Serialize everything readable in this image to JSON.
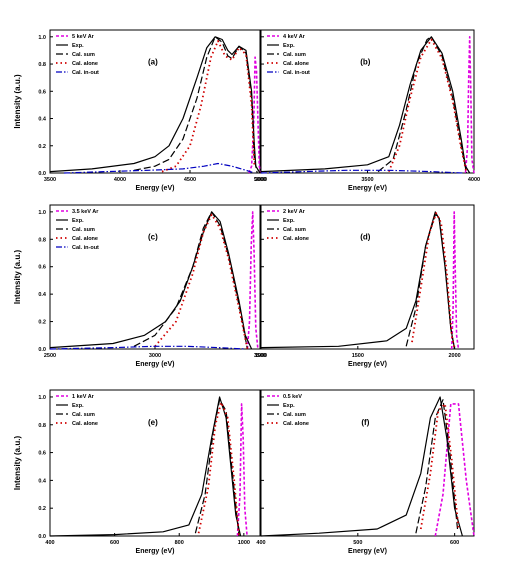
{
  "figure": {
    "panels": [
      {
        "row": 0,
        "col": 0,
        "label": "(a)",
        "xlim": [
          3500,
          5000
        ],
        "xticks": [
          "3500",
          "4000",
          "4500",
          "5000"
        ],
        "xlabel": "Energy (eV)",
        "ylabel": "Intensity (a.u.)",
        "legend": [
          "5 keV Ar",
          "Exp.",
          "Cal. sum",
          "Cal. alone",
          "Cal. in-out"
        ]
      },
      {
        "row": 0,
        "col": 1,
        "label": "(b)",
        "xlim": [
          3000,
          4000
        ],
        "xticks": [
          "3000",
          "3500",
          "4000"
        ],
        "xlabel": "Energy (eV)",
        "ylabel": "",
        "legend": [
          "4 keV Ar",
          "Exp.",
          "Cal. sum",
          "Cal. alone",
          "Cal. in-out"
        ]
      },
      {
        "row": 1,
        "col": 0,
        "label": "(c)",
        "xlim": [
          2500,
          3500
        ],
        "xticks": [
          "2500",
          "3000",
          "3500"
        ],
        "xlabel": "Energy (eV)",
        "ylabel": "Intensity (a.u.)",
        "legend": [
          "3.5 keV Ar",
          "Exp.",
          "Cal. sum",
          "Cal. alone",
          "Cal. in-out"
        ]
      },
      {
        "row": 1,
        "col": 1,
        "label": "(d)",
        "xlim": [
          1000,
          2100
        ],
        "xticks": [
          "1000",
          "1500",
          "2000"
        ],
        "xlabel": "Energy (eV)",
        "ylabel": "",
        "legend": [
          "2 keV Ar",
          "Exp.",
          "Cal. sum",
          "Cal. alone"
        ]
      },
      {
        "row": 2,
        "col": 0,
        "label": "(e)",
        "xlim": [
          400,
          1050
        ],
        "xticks": [
          "400",
          "600",
          "800",
          "1000"
        ],
        "xlabel": "Energy (eV)",
        "ylabel": "Intensity (a.u.)",
        "legend": [
          "1 keV Ar",
          "Exp.",
          "Cal. sum",
          "Cal. alone"
        ]
      },
      {
        "row": 2,
        "col": 1,
        "label": "(f)",
        "xlim": [
          400,
          620
        ],
        "xticks": [
          "400",
          "500",
          "600"
        ],
        "xlabel": "Energy (eV)",
        "ylabel": "",
        "legend": [
          "0.5 keV",
          "Exp.",
          "Cal. sum",
          "Cal. alone"
        ]
      }
    ],
    "yticks": [
      "0.0",
      "0.2",
      "0.4",
      "0.6",
      "0.8",
      "1.0"
    ]
  },
  "colors": {
    "ar": "#e000e0",
    "exp": "#000000",
    "sum": "#000000",
    "alone": "#d00000",
    "inout": "#0000c0"
  },
  "chart_data": [
    {
      "type": "line",
      "panel": "(a)",
      "xlim": [
        3500,
        5000
      ],
      "ylim": [
        0,
        1.05
      ],
      "series": [
        {
          "name": "5 keV Ar",
          "x": [
            4920,
            4940,
            4955,
            4965,
            4975,
            4985,
            4995,
            5005
          ],
          "y": [
            0,
            0.05,
            0.35,
            0.85,
            0.75,
            0.4,
            0.05,
            0
          ]
        },
        {
          "name": "Exp.",
          "x": [
            3500,
            3800,
            4100,
            4250,
            4350,
            4450,
            4550,
            4620,
            4680,
            4730,
            4770,
            4800,
            4850,
            4900,
            4940,
            4960,
            4970,
            5000
          ],
          "y": [
            0.01,
            0.03,
            0.07,
            0.12,
            0.2,
            0.4,
            0.7,
            0.92,
            1.0,
            0.98,
            0.9,
            0.87,
            0.93,
            0.9,
            0.6,
            0.2,
            0.05,
            0
          ]
        },
        {
          "name": "Cal. sum",
          "x": [
            4100,
            4250,
            4350,
            4450,
            4550,
            4620,
            4680,
            4730,
            4770,
            4800,
            4850,
            4900,
            4940,
            4960,
            4980
          ],
          "y": [
            0.02,
            0.05,
            0.1,
            0.25,
            0.55,
            0.85,
            1.0,
            0.96,
            0.86,
            0.84,
            0.93,
            0.88,
            0.55,
            0.1,
            0
          ]
        },
        {
          "name": "Cal. alone",
          "x": [
            4300,
            4400,
            4500,
            4580,
            4650,
            4700,
            4750,
            4800,
            4850,
            4900,
            4940,
            4960
          ],
          "y": [
            0.01,
            0.05,
            0.2,
            0.5,
            0.85,
            0.97,
            0.86,
            0.83,
            0.92,
            0.87,
            0.5,
            0.05
          ]
        },
        {
          "name": "Cal. in-out",
          "x": [
            3600,
            3900,
            4200,
            4450,
            4600,
            4700,
            4800,
            4900,
            4960
          ],
          "y": [
            0,
            0.01,
            0.02,
            0.03,
            0.05,
            0.07,
            0.05,
            0.02,
            0
          ]
        }
      ]
    },
    {
      "type": "line",
      "panel": "(b)",
      "xlim": [
        3000,
        4000
      ],
      "ylim": [
        0,
        1.05
      ],
      "series": [
        {
          "name": "4 keV Ar",
          "x": [
            3960,
            3970,
            3975,
            3980,
            3985,
            3990,
            4000
          ],
          "y": [
            0,
            0.2,
            0.7,
            1.0,
            0.6,
            0.1,
            0
          ]
        },
        {
          "name": "Exp.",
          "x": [
            3000,
            3300,
            3500,
            3600,
            3650,
            3700,
            3750,
            3800,
            3850,
            3900,
            3940,
            3960,
            3980
          ],
          "y": [
            0.01,
            0.03,
            0.06,
            0.12,
            0.35,
            0.65,
            0.9,
            1.0,
            0.88,
            0.6,
            0.25,
            0.05,
            0
          ]
        },
        {
          "name": "Cal. sum",
          "x": [
            3550,
            3620,
            3680,
            3730,
            3780,
            3800,
            3850,
            3900,
            3940,
            3965
          ],
          "y": [
            0.01,
            0.1,
            0.45,
            0.8,
            0.98,
            1.0,
            0.86,
            0.55,
            0.2,
            0
          ]
        },
        {
          "name": "Cal. alone",
          "x": [
            3600,
            3650,
            3700,
            3750,
            3800,
            3850,
            3900,
            3940,
            3965
          ],
          "y": [
            0.01,
            0.2,
            0.55,
            0.85,
            0.98,
            0.84,
            0.53,
            0.18,
            0
          ]
        },
        {
          "name": "Cal. in-out",
          "x": [
            3000,
            3200,
            3400,
            3600,
            3800,
            3950
          ],
          "y": [
            0,
            0.01,
            0.02,
            0.02,
            0.01,
            0
          ]
        }
      ]
    },
    {
      "type": "line",
      "panel": "(c)",
      "xlim": [
        2500,
        3500
      ],
      "ylim": [
        0,
        1.05
      ],
      "series": [
        {
          "name": "3.5 keV Ar",
          "x": [
            3440,
            3450,
            3458,
            3465,
            3472,
            3480,
            3490
          ],
          "y": [
            0,
            0.2,
            0.75,
            1.0,
            0.7,
            0.15,
            0
          ]
        },
        {
          "name": "Exp.",
          "x": [
            2500,
            2800,
            2950,
            3050,
            3120,
            3180,
            3230,
            3270,
            3310,
            3350,
            3400,
            3430,
            3460
          ],
          "y": [
            0.01,
            0.04,
            0.1,
            0.2,
            0.35,
            0.6,
            0.85,
            1.0,
            0.93,
            0.7,
            0.35,
            0.1,
            0
          ]
        },
        {
          "name": "Cal. sum",
          "x": [
            2900,
            3000,
            3100,
            3180,
            3230,
            3270,
            3310,
            3350,
            3400,
            3440
          ],
          "y": [
            0.02,
            0.1,
            0.3,
            0.6,
            0.88,
            1.0,
            0.9,
            0.68,
            0.32,
            0
          ]
        },
        {
          "name": "Cal. alone",
          "x": [
            3000,
            3100,
            3180,
            3230,
            3270,
            3310,
            3350,
            3400,
            3440
          ],
          "y": [
            0.02,
            0.2,
            0.55,
            0.85,
            0.98,
            0.88,
            0.66,
            0.3,
            0
          ]
        },
        {
          "name": "Cal. in-out",
          "x": [
            2500,
            2800,
            3000,
            3150,
            3300,
            3430
          ],
          "y": [
            0,
            0.01,
            0.02,
            0.02,
            0.01,
            0
          ]
        }
      ]
    },
    {
      "type": "line",
      "panel": "(d)",
      "xlim": [
        1000,
        2100
      ],
      "ylim": [
        0,
        1.05
      ],
      "series": [
        {
          "name": "2 keV Ar",
          "x": [
            1985,
            1992,
            1998,
            2003,
            2010,
            2020
          ],
          "y": [
            0,
            0.3,
            1.0,
            0.6,
            0.1,
            0
          ]
        },
        {
          "name": "Exp.",
          "x": [
            1000,
            1400,
            1650,
            1750,
            1800,
            1850,
            1900,
            1920,
            1950,
            1980,
            2000
          ],
          "y": [
            0.01,
            0.02,
            0.06,
            0.15,
            0.35,
            0.75,
            1.0,
            0.95,
            0.6,
            0.15,
            0
          ]
        },
        {
          "name": "Cal. sum",
          "x": [
            1750,
            1800,
            1850,
            1900,
            1920,
            1950,
            1980,
            2000
          ],
          "y": [
            0.02,
            0.3,
            0.75,
            0.98,
            0.96,
            0.62,
            0.15,
            0
          ]
        },
        {
          "name": "Cal. alone",
          "x": [
            1780,
            1820,
            1870,
            1905,
            1930,
            1960,
            1985,
            2000
          ],
          "y": [
            0.05,
            0.4,
            0.85,
            0.99,
            0.92,
            0.55,
            0.1,
            0
          ]
        }
      ]
    },
    {
      "type": "line",
      "panel": "(e)",
      "xlim": [
        400,
        1050
      ],
      "ylim": [
        0,
        1.05
      ],
      "series": [
        {
          "name": "1 keV Ar",
          "x": [
            980,
            988,
            993,
            998,
            1003,
            1010
          ],
          "y": [
            0,
            0.3,
            0.95,
            0.7,
            0.2,
            0
          ]
        },
        {
          "name": "Exp.",
          "x": [
            400,
            600,
            750,
            830,
            870,
            900,
            925,
            945,
            960,
            975,
            990
          ],
          "y": [
            0,
            0.01,
            0.03,
            0.08,
            0.3,
            0.7,
            1.0,
            0.85,
            0.5,
            0.15,
            0
          ]
        },
        {
          "name": "Cal. sum",
          "x": [
            850,
            880,
            905,
            925,
            945,
            965,
            985
          ],
          "y": [
            0.02,
            0.3,
            0.75,
            0.98,
            0.9,
            0.45,
            0
          ]
        },
        {
          "name": "Cal. alone",
          "x": [
            860,
            890,
            912,
            930,
            950,
            970,
            985
          ],
          "y": [
            0.02,
            0.35,
            0.8,
            0.96,
            0.85,
            0.4,
            0
          ]
        }
      ]
    },
    {
      "type": "line",
      "panel": "(f)",
      "xlim": [
        400,
        620
      ],
      "ylim": [
        0,
        1.05
      ],
      "series": [
        {
          "name": "0.5 keV",
          "x": [
            580,
            588,
            596,
            604,
            612,
            620
          ],
          "y": [
            0,
            0.3,
            0.95,
            0.95,
            0.4,
            0
          ]
        },
        {
          "name": "Exp.",
          "x": [
            400,
            460,
            520,
            550,
            565,
            575,
            585,
            592,
            600,
            608
          ],
          "y": [
            0,
            0.02,
            0.05,
            0.15,
            0.45,
            0.85,
            1.0,
            0.7,
            0.2,
            0
          ]
        },
        {
          "name": "Cal. sum",
          "x": [
            560,
            570,
            580,
            588,
            595,
            603
          ],
          "y": [
            0.02,
            0.35,
            0.85,
            0.98,
            0.6,
            0.05
          ]
        },
        {
          "name": "Cal. alone",
          "x": [
            565,
            575,
            583,
            590,
            597,
            604
          ],
          "y": [
            0.05,
            0.45,
            0.9,
            0.95,
            0.55,
            0.05
          ]
        }
      ]
    }
  ]
}
